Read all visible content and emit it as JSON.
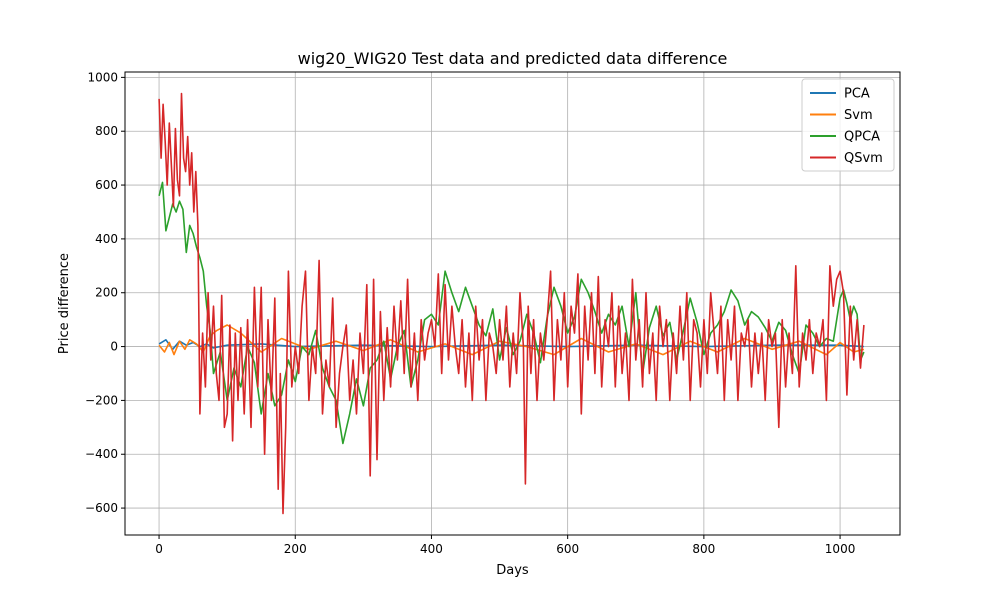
{
  "chart_data": {
    "type": "line",
    "title": "wig20_WIG20 Test data and predicted data difference",
    "xlabel": "Days",
    "ylabel": "Price difference",
    "xlim": [
      -50,
      1088
    ],
    "ylim": [
      -700,
      1020
    ],
    "xticks": [
      0,
      200,
      400,
      600,
      800,
      1000
    ],
    "yticks": [
      -600,
      -400,
      -200,
      0,
      200,
      400,
      600,
      800,
      1000
    ],
    "xtick_labels": [
      "0",
      "200",
      "400",
      "600",
      "800",
      "1000"
    ],
    "ytick_labels": [
      "−600",
      "−400",
      "−200",
      "0",
      "200",
      "400",
      "600",
      "800",
      "1000"
    ],
    "grid": true,
    "legend_position": "top-right",
    "series": [
      {
        "name": "PCA",
        "color": "#1f77b4",
        "x": [
          0,
          10,
          20,
          30,
          40,
          50,
          60,
          70,
          80,
          100,
          150,
          200,
          300,
          400,
          500,
          600,
          700,
          800,
          900,
          1000,
          1035
        ],
        "y": [
          10,
          25,
          -10,
          20,
          5,
          15,
          0,
          10,
          -5,
          5,
          10,
          0,
          5,
          0,
          5,
          0,
          5,
          0,
          5,
          5,
          0
        ]
      },
      {
        "name": "Svm",
        "color": "#ff7f0e",
        "x": [
          0,
          8,
          15,
          22,
          30,
          38,
          45,
          55,
          65,
          75,
          85,
          100,
          120,
          150,
          180,
          220,
          260,
          300,
          340,
          380,
          420,
          460,
          500,
          540,
          580,
          620,
          660,
          700,
          740,
          780,
          820,
          860,
          900,
          940,
          980,
          1000,
          1020,
          1035
        ],
        "y": [
          5,
          -20,
          15,
          -30,
          20,
          -10,
          25,
          10,
          -20,
          40,
          60,
          80,
          50,
          -20,
          30,
          -10,
          20,
          -15,
          25,
          -20,
          10,
          -30,
          20,
          0,
          -30,
          30,
          -20,
          10,
          -30,
          20,
          -20,
          30,
          -10,
          20,
          -30,
          15,
          -20,
          -10
        ]
      },
      {
        "name": "QPCA",
        "color": "#2ca02c",
        "x": [
          0,
          5,
          10,
          15,
          20,
          25,
          30,
          35,
          40,
          45,
          50,
          55,
          60,
          65,
          70,
          75,
          80,
          90,
          100,
          110,
          120,
          130,
          140,
          150,
          160,
          170,
          180,
          190,
          200,
          210,
          220,
          230,
          240,
          250,
          260,
          270,
          280,
          290,
          300,
          310,
          320,
          330,
          340,
          350,
          360,
          370,
          380,
          390,
          400,
          410,
          420,
          430,
          440,
          450,
          460,
          470,
          480,
          490,
          500,
          510,
          520,
          530,
          540,
          550,
          560,
          570,
          580,
          590,
          600,
          610,
          620,
          630,
          640,
          650,
          660,
          670,
          680,
          690,
          700,
          710,
          720,
          730,
          740,
          750,
          760,
          770,
          780,
          790,
          800,
          810,
          820,
          830,
          840,
          850,
          860,
          870,
          880,
          890,
          900,
          910,
          920,
          930,
          940,
          950,
          960,
          970,
          980,
          990,
          1000,
          1005,
          1010,
          1015,
          1020,
          1025,
          1030,
          1035
        ],
        "y": [
          560,
          610,
          430,
          480,
          530,
          500,
          540,
          510,
          350,
          450,
          420,
          370,
          330,
          280,
          150,
          60,
          -100,
          -20,
          -200,
          -80,
          -150,
          0,
          -60,
          -250,
          -100,
          -220,
          -180,
          -50,
          -130,
          0,
          -30,
          60,
          -80,
          -150,
          -200,
          -360,
          -250,
          -120,
          -220,
          -80,
          -50,
          20,
          -120,
          0,
          60,
          -150,
          -50,
          100,
          120,
          80,
          280,
          200,
          130,
          220,
          150,
          80,
          40,
          140,
          -50,
          70,
          -30,
          20,
          120,
          50,
          -60,
          110,
          220,
          150,
          50,
          110,
          250,
          200,
          130,
          50,
          120,
          80,
          150,
          0,
          200,
          -100,
          70,
          150,
          40,
          90,
          -50,
          60,
          180,
          90,
          -30,
          50,
          80,
          130,
          210,
          170,
          80,
          130,
          110,
          70,
          20,
          90,
          60,
          -30,
          -100,
          80,
          50,
          0,
          30,
          20,
          180,
          210,
          160,
          100,
          150,
          120,
          -50,
          -20
        ]
      },
      {
        "name": "QSvm",
        "color": "#d62728",
        "x": [
          0,
          3,
          6,
          9,
          12,
          15,
          18,
          21,
          24,
          27,
          30,
          33,
          36,
          39,
          42,
          45,
          48,
          51,
          54,
          57,
          60,
          64,
          68,
          72,
          76,
          80,
          84,
          88,
          92,
          96,
          100,
          104,
          108,
          112,
          116,
          120,
          125,
          130,
          135,
          140,
          145,
          150,
          155,
          160,
          165,
          170,
          175,
          178,
          182,
          186,
          190,
          195,
          200,
          205,
          210,
          215,
          220,
          225,
          230,
          235,
          240,
          245,
          250,
          255,
          260,
          265,
          270,
          275,
          280,
          285,
          290,
          295,
          300,
          305,
          310,
          315,
          320,
          325,
          330,
          335,
          340,
          345,
          350,
          355,
          360,
          365,
          370,
          375,
          380,
          385,
          390,
          395,
          400,
          405,
          410,
          415,
          420,
          425,
          430,
          435,
          440,
          445,
          450,
          455,
          460,
          465,
          470,
          475,
          480,
          485,
          490,
          495,
          500,
          505,
          510,
          515,
          520,
          525,
          530,
          535,
          538,
          542,
          546,
          550,
          555,
          560,
          565,
          570,
          575,
          580,
          585,
          590,
          595,
          600,
          605,
          610,
          615,
          620,
          625,
          630,
          635,
          640,
          645,
          650,
          655,
          660,
          665,
          670,
          675,
          680,
          685,
          690,
          695,
          700,
          705,
          710,
          715,
          720,
          725,
          730,
          735,
          740,
          745,
          750,
          755,
          760,
          765,
          770,
          775,
          780,
          785,
          790,
          795,
          800,
          805,
          810,
          815,
          820,
          825,
          830,
          835,
          840,
          845,
          850,
          855,
          860,
          865,
          870,
          875,
          880,
          885,
          890,
          895,
          900,
          905,
          910,
          915,
          920,
          925,
          930,
          935,
          940,
          945,
          950,
          955,
          960,
          965,
          970,
          975,
          980,
          985,
          990,
          995,
          1000,
          1005,
          1010,
          1015,
          1020,
          1025,
          1030,
          1035
        ],
        "y": [
          920,
          700,
          900,
          760,
          600,
          830,
          680,
          520,
          810,
          620,
          560,
          940,
          700,
          650,
          780,
          600,
          720,
          500,
          650,
          450,
          -250,
          50,
          -150,
          200,
          -50,
          150,
          -100,
          -200,
          190,
          -300,
          -250,
          80,
          -350,
          50,
          -200,
          70,
          -250,
          100,
          -300,
          220,
          -150,
          220,
          -400,
          100,
          -200,
          180,
          -530,
          -100,
          -620,
          -300,
          280,
          -150,
          0,
          -100,
          150,
          280,
          -200,
          0,
          -100,
          320,
          -250,
          -50,
          -150,
          180,
          -300,
          -100,
          0,
          80,
          -200,
          -50,
          -250,
          50,
          -100,
          230,
          -480,
          250,
          -420,
          130,
          -200,
          70,
          -150,
          150,
          -50,
          170,
          -100,
          250,
          -150,
          50,
          -200,
          100,
          -50,
          50,
          100,
          0,
          270,
          -100,
          230,
          -50,
          150,
          0,
          -100,
          100,
          -150,
          50,
          -200,
          150,
          -50,
          100,
          -200,
          50,
          0,
          -100,
          100,
          -50,
          150,
          -150,
          50,
          -100,
          200,
          0,
          -510,
          150,
          -100,
          100,
          -200,
          50,
          -50,
          100,
          280,
          -200,
          100,
          -50,
          200,
          -150,
          150,
          50,
          270,
          -250,
          150,
          -50,
          200,
          -100,
          260,
          -150,
          100,
          0,
          200,
          -150,
          150,
          -100,
          50,
          -200,
          250,
          -50,
          100,
          -150,
          200,
          -100,
          50,
          -200,
          150,
          0,
          100,
          -200,
          50,
          -100,
          150,
          -50,
          200,
          -200,
          100,
          50,
          -150,
          100,
          -100,
          200,
          50,
          -100,
          150,
          -200,
          100,
          -50,
          150,
          -200,
          50,
          0,
          100,
          -150,
          50,
          -100,
          50,
          -200,
          100,
          0,
          50,
          -300,
          100,
          -150,
          50,
          -100,
          300,
          -150,
          50,
          -50,
          100,
          -100,
          50,
          0,
          100,
          -200,
          300,
          150,
          250,
          280,
          200,
          -180,
          150,
          -50,
          100,
          -80,
          80
        ]
      }
    ]
  }
}
